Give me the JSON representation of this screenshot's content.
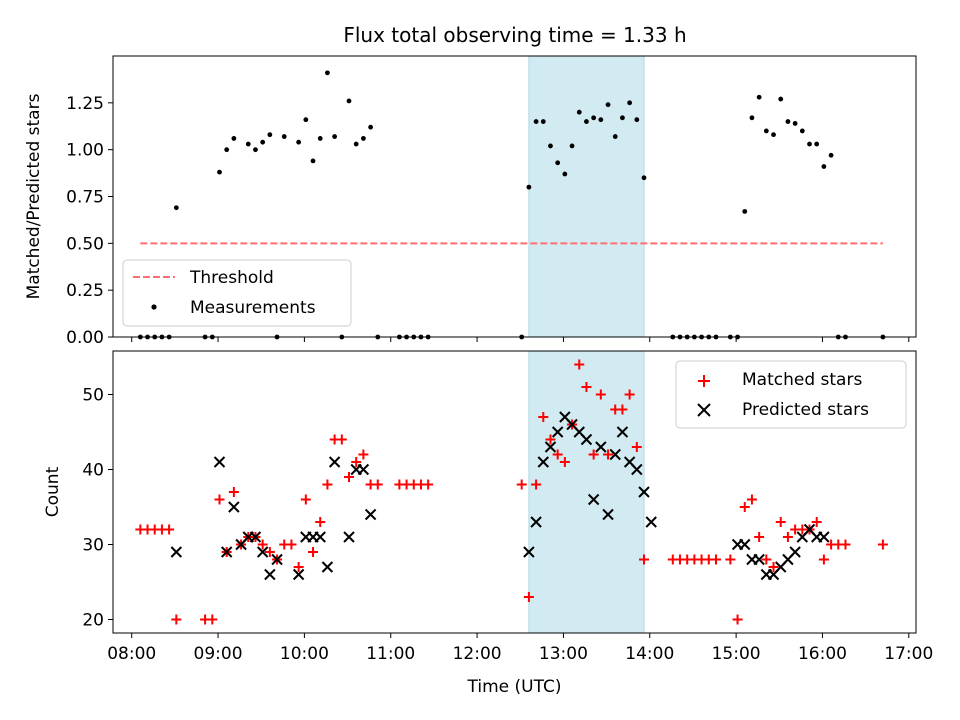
{
  "title": "Flux total observing time = 1.33 h",
  "colors": {
    "highlight": "#add8e6",
    "threshold": "#ff6f6f",
    "matched": "#ff0000",
    "predicted": "#000000",
    "measurement": "#000000"
  },
  "chart_data": [
    {
      "type": "scatter",
      "panel": "top",
      "title": "Flux total observing time = 1.33 h",
      "xlabel": "",
      "ylabel": "Matched/Predicted stars",
      "xlim": [
        "07:47",
        "17:05"
      ],
      "ylim": [
        0,
        1.5
      ],
      "yticks": [
        0.0,
        0.25,
        0.5,
        0.75,
        1.0,
        1.25
      ],
      "ytick_labels": [
        "0.00",
        "0.25",
        "0.50",
        "0.75",
        "1.00",
        "1.25"
      ],
      "highlight_span": [
        "12:36",
        "13:56"
      ],
      "legend": {
        "position": "lower-left",
        "entries": [
          "Threshold",
          "Measurements"
        ]
      },
      "threshold": {
        "name": "Threshold",
        "x": [
          "08:06",
          "16:42"
        ],
        "y": 0.5
      },
      "series": [
        {
          "name": "Measurements",
          "points": [
            [
              "08:06",
              0
            ],
            [
              "08:11",
              0
            ],
            [
              "08:16",
              0
            ],
            [
              "08:21",
              0
            ],
            [
              "08:26",
              0
            ],
            [
              "08:31",
              0.69
            ],
            [
              "08:51",
              0
            ],
            [
              "08:56",
              0
            ],
            [
              "09:01",
              0.88
            ],
            [
              "09:06",
              1.0
            ],
            [
              "09:11",
              1.06
            ],
            [
              "09:21",
              1.03
            ],
            [
              "09:26",
              1.0
            ],
            [
              "09:31",
              1.04
            ],
            [
              "09:36",
              1.08
            ],
            [
              "09:46",
              1.07
            ],
            [
              "09:41",
              0
            ],
            [
              "09:56",
              1.04
            ],
            [
              "10:01",
              1.16
            ],
            [
              "10:06",
              0.94
            ],
            [
              "10:11",
              1.06
            ],
            [
              "10:16",
              1.41
            ],
            [
              "10:21",
              1.07
            ],
            [
              "10:26",
              0
            ],
            [
              "10:31",
              1.26
            ],
            [
              "10:36",
              1.03
            ],
            [
              "10:41",
              1.06
            ],
            [
              "10:46",
              1.12
            ],
            [
              "10:51",
              0
            ],
            [
              "11:06",
              0
            ],
            [
              "11:11",
              0
            ],
            [
              "11:16",
              0
            ],
            [
              "11:21",
              0
            ],
            [
              "11:26",
              0
            ],
            [
              "12:31",
              0
            ],
            [
              "12:36",
              0.8
            ],
            [
              "12:41",
              1.15
            ],
            [
              "12:46",
              1.15
            ],
            [
              "12:51",
              1.02
            ],
            [
              "12:56",
              0.93
            ],
            [
              "13:01",
              0.87
            ],
            [
              "13:06",
              1.02
            ],
            [
              "13:11",
              1.2
            ],
            [
              "13:16",
              1.15
            ],
            [
              "13:21",
              1.17
            ],
            [
              "13:26",
              1.16
            ],
            [
              "13:31",
              1.24
            ],
            [
              "13:36",
              1.07
            ],
            [
              "13:41",
              1.17
            ],
            [
              "13:46",
              1.25
            ],
            [
              "13:51",
              1.16
            ],
            [
              "13:56",
              0.85
            ],
            [
              "14:16",
              0
            ],
            [
              "14:21",
              0
            ],
            [
              "14:26",
              0
            ],
            [
              "14:31",
              0
            ],
            [
              "14:36",
              0
            ],
            [
              "14:41",
              0
            ],
            [
              "14:46",
              0
            ],
            [
              "14:56",
              0
            ],
            [
              "15:01",
              0
            ],
            [
              "15:06",
              0.67
            ],
            [
              "15:11",
              1.17
            ],
            [
              "15:16",
              1.28
            ],
            [
              "15:21",
              1.1
            ],
            [
              "15:26",
              1.08
            ],
            [
              "15:31",
              1.27
            ],
            [
              "15:36",
              1.15
            ],
            [
              "15:41",
              1.14
            ],
            [
              "15:46",
              1.1
            ],
            [
              "15:51",
              1.03
            ],
            [
              "15:56",
              1.03
            ],
            [
              "16:01",
              0.91
            ],
            [
              "16:06",
              0.97
            ],
            [
              "16:11",
              0
            ],
            [
              "16:16",
              0
            ],
            [
              "16:42",
              0
            ]
          ]
        }
      ]
    },
    {
      "type": "scatter",
      "panel": "bottom",
      "title": "",
      "xlabel": "Time (UTC)",
      "ylabel": "Count",
      "xlim": [
        "07:47",
        "17:05"
      ],
      "ylim": [
        18.2,
        55.8
      ],
      "yticks": [
        20,
        30,
        40,
        50
      ],
      "ytick_labels": [
        "20",
        "30",
        "40",
        "50"
      ],
      "xticks": [
        "08:00",
        "09:00",
        "10:00",
        "11:00",
        "12:00",
        "13:00",
        "14:00",
        "15:00",
        "16:00",
        "17:00"
      ],
      "xtick_labels": [
        "08:00",
        "09:00",
        "10:00",
        "11:00",
        "12:00",
        "13:00",
        "14:00",
        "15:00",
        "16:00",
        "17:00"
      ],
      "highlight_span": [
        "12:36",
        "13:56"
      ],
      "legend": {
        "position": "upper-right",
        "entries": [
          "Matched stars",
          "Predicted stars"
        ]
      },
      "series": [
        {
          "name": "Matched stars",
          "marker": "+",
          "points": [
            [
              "08:06",
              32
            ],
            [
              "08:11",
              32
            ],
            [
              "08:16",
              32
            ],
            [
              "08:21",
              32
            ],
            [
              "08:26",
              32
            ],
            [
              "08:31",
              20
            ],
            [
              "08:51",
              20
            ],
            [
              "08:56",
              20
            ],
            [
              "09:01",
              36
            ],
            [
              "09:06",
              29
            ],
            [
              "09:11",
              37
            ],
            [
              "09:16",
              30
            ],
            [
              "09:21",
              31
            ],
            [
              "09:26",
              31
            ],
            [
              "09:31",
              30
            ],
            [
              "09:36",
              29
            ],
            [
              "09:41",
              28
            ],
            [
              "09:46",
              30
            ],
            [
              "09:51",
              30
            ],
            [
              "09:56",
              27
            ],
            [
              "10:01",
              36
            ],
            [
              "10:06",
              29
            ],
            [
              "10:11",
              33
            ],
            [
              "10:16",
              38
            ],
            [
              "10:21",
              44
            ],
            [
              "10:26",
              44
            ],
            [
              "10:31",
              39
            ],
            [
              "10:36",
              41
            ],
            [
              "10:41",
              42
            ],
            [
              "10:46",
              38
            ],
            [
              "10:51",
              38
            ],
            [
              "11:06",
              38
            ],
            [
              "11:11",
              38
            ],
            [
              "11:16",
              38
            ],
            [
              "11:21",
              38
            ],
            [
              "11:26",
              38
            ],
            [
              "12:31",
              38
            ],
            [
              "12:36",
              23
            ],
            [
              "12:41",
              38
            ],
            [
              "12:46",
              47
            ],
            [
              "12:51",
              44
            ],
            [
              "12:56",
              42
            ],
            [
              "13:01",
              41
            ],
            [
              "13:06",
              46
            ],
            [
              "13:11",
              54
            ],
            [
              "13:16",
              51
            ],
            [
              "13:21",
              42
            ],
            [
              "13:26",
              50
            ],
            [
              "13:31",
              42
            ],
            [
              "13:36",
              48
            ],
            [
              "13:41",
              48
            ],
            [
              "13:46",
              50
            ],
            [
              "13:51",
              43
            ],
            [
              "13:56",
              28
            ],
            [
              "14:16",
              28
            ],
            [
              "14:21",
              28
            ],
            [
              "14:26",
              28
            ],
            [
              "14:31",
              28
            ],
            [
              "14:36",
              28
            ],
            [
              "14:41",
              28
            ],
            [
              "14:46",
              28
            ],
            [
              "14:56",
              28
            ],
            [
              "15:01",
              20
            ],
            [
              "15:06",
              35
            ],
            [
              "15:11",
              36
            ],
            [
              "15:16",
              31
            ],
            [
              "15:21",
              28
            ],
            [
              "15:26",
              27
            ],
            [
              "15:31",
              33
            ],
            [
              "15:36",
              31
            ],
            [
              "15:41",
              32
            ],
            [
              "15:46",
              32
            ],
            [
              "15:51",
              32
            ],
            [
              "15:56",
              33
            ],
            [
              "16:01",
              28
            ],
            [
              "16:06",
              30
            ],
            [
              "16:11",
              30
            ],
            [
              "16:16",
              30
            ],
            [
              "16:42",
              30
            ]
          ]
        },
        {
          "name": "Predicted stars",
          "marker": "x",
          "points": [
            [
              "08:31",
              29
            ],
            [
              "09:01",
              41
            ],
            [
              "09:06",
              29
            ],
            [
              "09:11",
              35
            ],
            [
              "09:16",
              30
            ],
            [
              "09:21",
              31
            ],
            [
              "09:26",
              31
            ],
            [
              "09:31",
              29
            ],
            [
              "09:36",
              26
            ],
            [
              "09:41",
              28
            ],
            [
              "09:56",
              26
            ],
            [
              "10:01",
              31
            ],
            [
              "10:06",
              31
            ],
            [
              "10:11",
              31
            ],
            [
              "10:16",
              27
            ],
            [
              "10:21",
              41
            ],
            [
              "10:31",
              31
            ],
            [
              "10:36",
              40
            ],
            [
              "10:41",
              40
            ],
            [
              "10:46",
              34
            ],
            [
              "12:36",
              29
            ],
            [
              "12:41",
              33
            ],
            [
              "12:46",
              41
            ],
            [
              "12:51",
              43
            ],
            [
              "12:56",
              45
            ],
            [
              "13:01",
              47
            ],
            [
              "13:06",
              46
            ],
            [
              "13:11",
              45
            ],
            [
              "13:16",
              44
            ],
            [
              "13:21",
              36
            ],
            [
              "13:26",
              43
            ],
            [
              "13:31",
              34
            ],
            [
              "13:36",
              42
            ],
            [
              "13:41",
              45
            ],
            [
              "13:46",
              41
            ],
            [
              "13:51",
              40
            ],
            [
              "13:56",
              37
            ],
            [
              "14:01",
              33
            ],
            [
              "15:01",
              30
            ],
            [
              "15:06",
              30
            ],
            [
              "15:11",
              28
            ],
            [
              "15:16",
              28
            ],
            [
              "15:21",
              26
            ],
            [
              "15:26",
              26
            ],
            [
              "15:31",
              27
            ],
            [
              "15:36",
              28
            ],
            [
              "15:41",
              29
            ],
            [
              "15:46",
              31
            ],
            [
              "15:51",
              32
            ],
            [
              "15:56",
              31
            ],
            [
              "16:01",
              31
            ]
          ]
        }
      ]
    }
  ]
}
